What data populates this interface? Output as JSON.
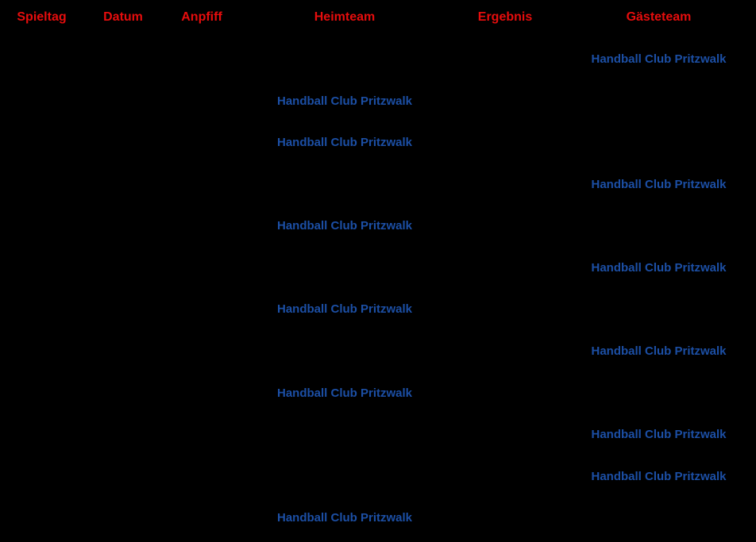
{
  "colors": {
    "background": "#000000",
    "header_text": "#e60d0d",
    "club_link": "#1c4fa5",
    "body_text": "#000000"
  },
  "club_name": "Handball Club Pritzwalk",
  "header": {
    "spieltag": "Spieltag",
    "datum": "Datum",
    "anpfiff": "Anpfiff",
    "heimteam": "Heimteam",
    "ergebnis": "Ergebnis",
    "gaesteteam": "Gästeteam"
  },
  "rows": [
    {
      "spieltag": "",
      "datum": "",
      "anpfiff": "",
      "heimteam": "",
      "ergebnis": "",
      "gaesteteam": "Handball Club Pritzwalk"
    },
    {
      "spieltag": "",
      "datum": "",
      "anpfiff": "",
      "heimteam": "Handball Club Pritzwalk",
      "ergebnis": "",
      "gaesteteam": ""
    },
    {
      "spieltag": "",
      "datum": "",
      "anpfiff": "",
      "heimteam": "Handball Club Pritzwalk",
      "ergebnis": "",
      "gaesteteam": ""
    },
    {
      "spieltag": "",
      "datum": "",
      "anpfiff": "",
      "heimteam": "",
      "ergebnis": "",
      "gaesteteam": "Handball Club Pritzwalk"
    },
    {
      "spieltag": "",
      "datum": "",
      "anpfiff": "",
      "heimteam": "Handball Club Pritzwalk",
      "ergebnis": "",
      "gaesteteam": ""
    },
    {
      "spieltag": "",
      "datum": "",
      "anpfiff": "",
      "heimteam": "",
      "ergebnis": "",
      "gaesteteam": "Handball Club Pritzwalk"
    },
    {
      "spieltag": "",
      "datum": "",
      "anpfiff": "",
      "heimteam": "Handball Club Pritzwalk",
      "ergebnis": "",
      "gaesteteam": ""
    },
    {
      "spieltag": "",
      "datum": "",
      "anpfiff": "",
      "heimteam": "",
      "ergebnis": "",
      "gaesteteam": "Handball Club Pritzwalk"
    },
    {
      "spieltag": "",
      "datum": "",
      "anpfiff": "",
      "heimteam": "Handball Club Pritzwalk",
      "ergebnis": "",
      "gaesteteam": ""
    },
    {
      "spieltag": "",
      "datum": "",
      "anpfiff": "",
      "heimteam": "",
      "ergebnis": "",
      "gaesteteam": "Handball Club Pritzwalk"
    },
    {
      "spieltag": "",
      "datum": "",
      "anpfiff": "",
      "heimteam": "",
      "ergebnis": "",
      "gaesteteam": "Handball Club Pritzwalk"
    },
    {
      "spieltag": "",
      "datum": "",
      "anpfiff": "",
      "heimteam": "Handball Club Pritzwalk",
      "ergebnis": "",
      "gaesteteam": ""
    }
  ]
}
